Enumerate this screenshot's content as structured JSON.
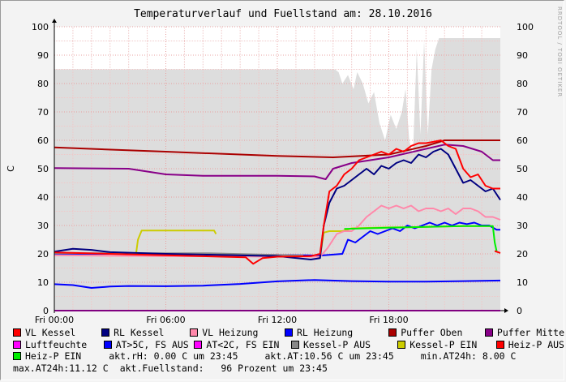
{
  "chart_data": {
    "type": "line",
    "title": "Temperaturverlauf und Fuellstand am: 28.10.2016",
    "ylabel": "C",
    "ylim": [
      0,
      100
    ],
    "yticks": [
      "0",
      "10",
      "20",
      "30",
      "40",
      "50",
      "60",
      "70",
      "80",
      "90",
      "100"
    ],
    "xlim": [
      0,
      24
    ],
    "xticks": [
      {
        "t": 0,
        "label": "Fri 00:00"
      },
      {
        "t": 6,
        "label": "Fri 06:00"
      },
      {
        "t": 12,
        "label": "Fri 12:00"
      },
      {
        "t": 18,
        "label": "Fri 18:00"
      }
    ],
    "grid": true,
    "watermark": "RRDTOOL / TOBI OETIKER",
    "fill_area": {
      "name": "Fuellstand",
      "color": "#dddddd",
      "points": [
        [
          0,
          85
        ],
        [
          15.1,
          85
        ],
        [
          15.3,
          84
        ],
        [
          15.5,
          80
        ],
        [
          15.8,
          83
        ],
        [
          16.1,
          78
        ],
        [
          16.3,
          84
        ],
        [
          16.6,
          80
        ],
        [
          16.9,
          73
        ],
        [
          17.2,
          77
        ],
        [
          17.5,
          66
        ],
        [
          17.8,
          60
        ],
        [
          18.1,
          69
        ],
        [
          18.4,
          64
        ],
        [
          18.7,
          70
        ],
        [
          18.9,
          78
        ],
        [
          19.1,
          60
        ],
        [
          19.3,
          55
        ],
        [
          19.5,
          92
        ],
        [
          19.7,
          62
        ],
        [
          19.9,
          95
        ],
        [
          20.1,
          62
        ],
        [
          20.3,
          85
        ],
        [
          20.5,
          92
        ],
        [
          20.7,
          96
        ],
        [
          21.2,
          96
        ],
        [
          24,
          96
        ]
      ]
    },
    "series": [
      {
        "name": "VL Kessel",
        "color": "#ff0000",
        "points": [
          [
            0,
            20.5
          ],
          [
            3,
            20
          ],
          [
            6,
            19.5
          ],
          [
            9,
            19
          ],
          [
            10.3,
            18.8
          ],
          [
            10.7,
            16.5
          ],
          [
            11.2,
            18.5
          ],
          [
            12,
            19
          ],
          [
            13.8,
            19.2
          ],
          [
            14.3,
            20
          ],
          [
            14.5,
            30
          ],
          [
            14.8,
            42
          ],
          [
            15.2,
            44
          ],
          [
            15.6,
            48
          ],
          [
            16,
            50
          ],
          [
            16.4,
            53
          ],
          [
            16.8,
            54
          ],
          [
            17.2,
            55
          ],
          [
            17.6,
            56
          ],
          [
            18,
            55
          ],
          [
            18.4,
            57
          ],
          [
            18.8,
            56
          ],
          [
            19.2,
            58
          ],
          [
            19.6,
            59
          ],
          [
            20,
            59
          ],
          [
            20.4,
            59.5
          ],
          [
            20.8,
            60
          ],
          [
            21.2,
            58
          ],
          [
            21.6,
            57
          ],
          [
            22,
            50
          ],
          [
            22.4,
            47
          ],
          [
            22.8,
            48
          ],
          [
            23.2,
            44
          ],
          [
            23.6,
            43
          ],
          [
            24,
            43
          ]
        ]
      },
      {
        "name": "RL Kessel",
        "color": "#000080",
        "points": [
          [
            0,
            20.8
          ],
          [
            1,
            21.8
          ],
          [
            2,
            21.4
          ],
          [
            3,
            20.6
          ],
          [
            6,
            20
          ],
          [
            9,
            19.6
          ],
          [
            12,
            19.2
          ],
          [
            13.8,
            18
          ],
          [
            14.3,
            18.5
          ],
          [
            14.5,
            30
          ],
          [
            14.8,
            38
          ],
          [
            15.2,
            43
          ],
          [
            15.6,
            44
          ],
          [
            16,
            46
          ],
          [
            16.4,
            48
          ],
          [
            16.8,
            50
          ],
          [
            17.2,
            48
          ],
          [
            17.6,
            51
          ],
          [
            18,
            50
          ],
          [
            18.4,
            52
          ],
          [
            18.8,
            53
          ],
          [
            19.2,
            52
          ],
          [
            19.6,
            55
          ],
          [
            20,
            54
          ],
          [
            20.4,
            56
          ],
          [
            20.8,
            57
          ],
          [
            21.2,
            55
          ],
          [
            21.6,
            50
          ],
          [
            22,
            45
          ],
          [
            22.4,
            46
          ],
          [
            22.8,
            44
          ],
          [
            23.2,
            42
          ],
          [
            23.6,
            43
          ],
          [
            24,
            39
          ]
        ]
      },
      {
        "name": "VL Heizung",
        "color": "#ff88aa",
        "points": [
          [
            0,
            19.5
          ],
          [
            6,
            19.2
          ],
          [
            12,
            19
          ],
          [
            14.3,
            19
          ],
          [
            14.7,
            22
          ],
          [
            15.2,
            27
          ],
          [
            15.6,
            28
          ],
          [
            16,
            28
          ],
          [
            16.4,
            30
          ],
          [
            16.8,
            33
          ],
          [
            17.2,
            35
          ],
          [
            17.6,
            37
          ],
          [
            18,
            36
          ],
          [
            18.4,
            37
          ],
          [
            18.8,
            36
          ],
          [
            19.2,
            37
          ],
          [
            19.6,
            35
          ],
          [
            20,
            36
          ],
          [
            20.4,
            36
          ],
          [
            20.8,
            35
          ],
          [
            21.2,
            36
          ],
          [
            21.6,
            34
          ],
          [
            22,
            36
          ],
          [
            22.4,
            36
          ],
          [
            22.8,
            35
          ],
          [
            23.2,
            33
          ],
          [
            23.6,
            33
          ],
          [
            24,
            32
          ]
        ]
      },
      {
        "name": "RL Heizung",
        "color": "#0000ff",
        "points": [
          [
            0,
            9.3
          ],
          [
            1,
            9
          ],
          [
            2,
            8
          ],
          [
            3,
            8.5
          ],
          [
            4,
            8.7
          ],
          [
            6,
            8.6
          ],
          [
            8,
            8.8
          ],
          [
            10,
            9.4
          ],
          [
            12,
            10.3
          ],
          [
            14,
            10.8
          ],
          [
            16,
            10.4
          ],
          [
            18,
            10.2
          ],
          [
            20,
            10.2
          ],
          [
            22,
            10.4
          ],
          [
            24,
            10.6
          ]
        ]
      },
      {
        "name": "Puffer Oben",
        "color": "#aa0000",
        "points": [
          [
            0,
            57.5
          ],
          [
            6,
            56
          ],
          [
            12,
            54.5
          ],
          [
            15,
            54
          ],
          [
            18,
            55
          ],
          [
            20,
            58
          ],
          [
            21,
            60
          ],
          [
            22,
            60
          ],
          [
            24,
            60
          ]
        ]
      },
      {
        "name": "Puffer Mitte",
        "color": "#880088",
        "points": [
          [
            0,
            50.2
          ],
          [
            4,
            50
          ],
          [
            5,
            49
          ],
          [
            6,
            48
          ],
          [
            8,
            47.5
          ],
          [
            12,
            47.5
          ],
          [
            14,
            47.3
          ],
          [
            14.6,
            46.3
          ],
          [
            15,
            50
          ],
          [
            16,
            52
          ],
          [
            18,
            54
          ],
          [
            20,
            57
          ],
          [
            21,
            58.5
          ],
          [
            22,
            58
          ],
          [
            23,
            56
          ],
          [
            23.6,
            53
          ],
          [
            24,
            53
          ]
        ]
      },
      {
        "name": "Luftfeuchte",
        "color": "#ff00ff",
        "points": [
          [
            0,
            0
          ],
          [
            24,
            0
          ]
        ]
      },
      {
        "name": "AT>5C, FS AUS",
        "color": "#0000ff",
        "points": [
          [
            0,
            20
          ],
          [
            6,
            20
          ],
          [
            12,
            19.6
          ],
          [
            14.3,
            19.4
          ],
          [
            15.5,
            20
          ],
          [
            15.8,
            25
          ],
          [
            16.2,
            24
          ],
          [
            16.6,
            26
          ],
          [
            17,
            28
          ],
          [
            17.4,
            27
          ],
          [
            17.8,
            28
          ],
          [
            18.2,
            29
          ],
          [
            18.6,
            28
          ],
          [
            19,
            30
          ],
          [
            19.4,
            29
          ],
          [
            19.8,
            30
          ],
          [
            20.2,
            31
          ],
          [
            20.6,
            30
          ],
          [
            21,
            31
          ],
          [
            21.4,
            30
          ],
          [
            21.8,
            31
          ],
          [
            22.2,
            30.5
          ],
          [
            22.6,
            31
          ],
          [
            23,
            30
          ],
          [
            23.4,
            30
          ],
          [
            23.8,
            28.5
          ],
          [
            24,
            28.5
          ]
        ]
      },
      {
        "name": "AT<2C, FS EIN",
        "color": "#ff00ff",
        "points": []
      },
      {
        "name": "Kessel-P AUS",
        "color": "#888888",
        "points": [
          [
            0,
            20.2
          ],
          [
            8.3,
            20.2
          ],
          [
            13.4,
            19.4
          ]
        ]
      },
      {
        "name": "Kessel-P EIN",
        "color": "#cccc00",
        "points": [
          [
            4.4,
            20
          ],
          [
            4.5,
            25
          ],
          [
            4.7,
            28.2
          ],
          [
            8.6,
            28.2
          ],
          [
            8.7,
            27
          ]
        ]
      },
      {
        "name": "Heiz-P AUS",
        "color": "#ff0000",
        "points": [
          [
            23.7,
            21
          ],
          [
            24,
            20.3
          ]
        ]
      },
      {
        "name": "Heiz-P EIN",
        "color": "#00ee00",
        "points": [
          [
            15.6,
            28.8
          ],
          [
            18,
            29.2
          ],
          [
            20,
            29.5
          ],
          [
            22,
            29.8
          ],
          [
            23.6,
            29.8
          ],
          [
            23.7,
            24
          ],
          [
            23.8,
            21
          ]
        ]
      }
    ],
    "yellow_extra": {
      "color": "#cccc00",
      "points": [
        [
          14.3,
          19
        ],
        [
          14.5,
          27.5
        ],
        [
          14.8,
          28
        ],
        [
          15.5,
          28
        ],
        [
          16,
          29
        ],
        [
          18,
          29.3
        ],
        [
          20,
          29.5
        ],
        [
          22,
          29.8
        ],
        [
          23.5,
          29.8
        ]
      ]
    },
    "legend": [
      {
        "label": "VL Kessel",
        "color": "#ff0000"
      },
      {
        "label": "RL Kessel",
        "color": "#000080"
      },
      {
        "label": "VL Heizung",
        "color": "#ff88aa"
      },
      {
        "label": "RL Heizung",
        "color": "#0000ff"
      },
      {
        "label": "Puffer Oben",
        "color": "#aa0000"
      },
      {
        "label": "Puffer Mitte",
        "color": "#880088"
      },
      {
        "label": "Luftfeuchte",
        "color": "#ff00ff"
      },
      {
        "label": "AT>5C, FS AUS",
        "color": "#0000ff"
      },
      {
        "label": "AT<2C, FS EIN",
        "color": "#ff00ff"
      },
      {
        "label": "Kessel-P AUS",
        "color": "#888888"
      },
      {
        "label": "Kessel-P EIN",
        "color": "#cccc00"
      },
      {
        "label": "Heiz-P AUS",
        "color": "#ff0000"
      },
      {
        "label": "Heiz-P EIN",
        "color": "#00ee00"
      }
    ],
    "stats": {
      "rh": "akt.rH: 0.00 C um 23:45",
      "at": "akt.AT:10.56 C um 23:45",
      "min": "min.AT24h: 8.00 C",
      "max": "max.AT24h:11.12 C",
      "fuell": "akt.Fuellstand:   96 Prozent um 23:45"
    }
  }
}
